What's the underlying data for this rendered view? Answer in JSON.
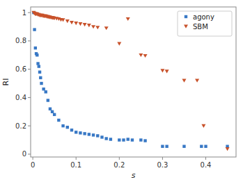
{
  "chart_data": {
    "type": "scatter",
    "x_label": "s",
    "y_label": "RI",
    "xlim": [
      -0.005,
      0.47
    ],
    "ylim": [
      -0.02,
      1.04
    ],
    "xticks": [
      0,
      0.1,
      0.2,
      0.3,
      0.4
    ],
    "yticks": [
      0,
      0.2,
      0.4,
      0.6,
      0.8,
      1
    ],
    "grid": false,
    "legend": "upper-right",
    "series": [
      {
        "name": "agony",
        "color": "#3878c5",
        "marker": "square",
        "x": [
          0.002,
          0.004,
          0.006,
          0.008,
          0.01,
          0.012,
          0.014,
          0.016,
          0.018,
          0.02,
          0.025,
          0.03,
          0.035,
          0.04,
          0.045,
          0.05,
          0.06,
          0.07,
          0.08,
          0.09,
          0.1,
          0.11,
          0.12,
          0.13,
          0.14,
          0.15,
          0.16,
          0.17,
          0.18,
          0.2,
          0.21,
          0.22,
          0.23,
          0.25,
          0.26,
          0.3,
          0.31,
          0.35,
          0.39,
          0.4,
          0.45
        ],
        "values": [
          1.0,
          0.88,
          0.75,
          0.71,
          0.7,
          0.64,
          0.62,
          0.58,
          0.54,
          0.5,
          0.46,
          0.44,
          0.38,
          0.32,
          0.3,
          0.28,
          0.24,
          0.2,
          0.19,
          0.17,
          0.155,
          0.15,
          0.145,
          0.14,
          0.135,
          0.13,
          0.12,
          0.11,
          0.105,
          0.1,
          0.1,
          0.105,
          0.1,
          0.1,
          0.095,
          0.055,
          0.055,
          0.055,
          0.055,
          0.055,
          0.055
        ]
      },
      {
        "name": "SBM",
        "color": "#c8522b",
        "marker": "triangle-down",
        "x": [
          0.002,
          0.004,
          0.006,
          0.007,
          0.008,
          0.01,
          0.012,
          0.014,
          0.016,
          0.018,
          0.02,
          0.022,
          0.024,
          0.026,
          0.028,
          0.03,
          0.032,
          0.034,
          0.036,
          0.038,
          0.04,
          0.042,
          0.044,
          0.046,
          0.048,
          0.05,
          0.055,
          0.06,
          0.065,
          0.07,
          0.08,
          0.09,
          0.1,
          0.11,
          0.12,
          0.13,
          0.14,
          0.15,
          0.17,
          0.2,
          0.22,
          0.25,
          0.26,
          0.3,
          0.31,
          0.35,
          0.38,
          0.395,
          0.45
        ],
        "values": [
          1.0,
          0.995,
          0.99,
          0.99,
          0.99,
          0.99,
          0.985,
          0.985,
          0.98,
          0.98,
          0.98,
          0.98,
          0.975,
          0.975,
          0.975,
          0.975,
          0.972,
          0.97,
          0.97,
          0.968,
          0.967,
          0.965,
          0.965,
          0.963,
          0.962,
          0.96,
          0.958,
          0.955,
          0.95,
          0.948,
          0.94,
          0.93,
          0.925,
          0.92,
          0.915,
          0.91,
          0.9,
          0.895,
          0.89,
          0.78,
          0.955,
          0.7,
          0.695,
          0.59,
          0.585,
          0.52,
          0.52,
          0.2,
          0.037
        ]
      }
    ]
  }
}
